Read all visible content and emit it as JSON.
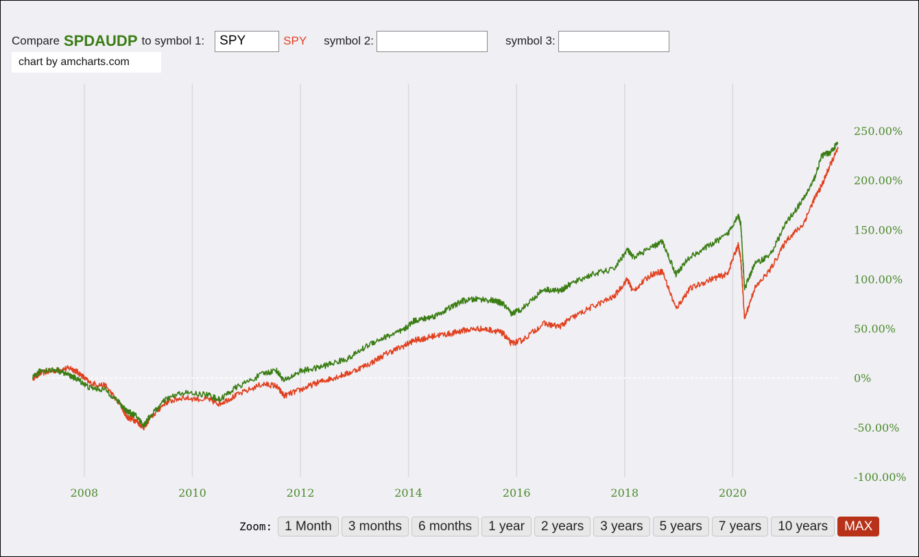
{
  "compare": {
    "prefix": "Compare",
    "symbol": "SPDAUDP",
    "middle": "to symbol 1:",
    "symbol1_value": "SPY",
    "symbol1_tag": "SPY",
    "symbol2_label": "symbol 2:",
    "symbol2_value": "",
    "symbol3_label": "symbol 3:",
    "symbol3_value": ""
  },
  "credit": "chart by amcharts.com",
  "zoom": {
    "label": "Zoom:",
    "buttons": [
      "1 Month",
      "3 months",
      "6 months",
      "1 year",
      "2 years",
      "3 years",
      "5 years",
      "7 years",
      "10 years",
      "MAX"
    ],
    "active": "MAX"
  },
  "colors": {
    "primary_series": "#3a7d14",
    "compare_series": "#e0401e",
    "axis_text": "#4a8a2a",
    "active_zoom": "#b8321a"
  },
  "chart_data": {
    "type": "line",
    "x_unit": "year",
    "xlim": [
      2007.05,
      2021.95
    ],
    "ylim": [
      -100,
      250
    ],
    "y_ticks": [
      "250.00%",
      "200.00%",
      "150.00%",
      "100.00%",
      "50.00%",
      "0%",
      "-50.00%",
      "-100.00%"
    ],
    "x_ticks": [
      "2008",
      "2010",
      "2012",
      "2014",
      "2016",
      "2018",
      "2020"
    ],
    "zero_line": true,
    "vertical_grid": true,
    "series": [
      {
        "name": "SPDAUDP",
        "x": [
          2007.05,
          2007.2,
          2007.5,
          2007.75,
          2007.9,
          2008.1,
          2008.4,
          2008.7,
          2008.8,
          2008.95,
          2009.1,
          2009.2,
          2009.5,
          2009.8,
          2010.3,
          2010.5,
          2010.8,
          2011.3,
          2011.55,
          2011.7,
          2012.0,
          2012.3,
          2012.6,
          2012.9,
          2013.3,
          2013.6,
          2013.9,
          2014.1,
          2014.3,
          2014.5,
          2014.8,
          2015.0,
          2015.3,
          2015.6,
          2015.75,
          2015.9,
          2016.1,
          2016.5,
          2016.8,
          2017.0,
          2017.4,
          2017.8,
          2018.05,
          2018.15,
          2018.5,
          2018.7,
          2018.95,
          2019.2,
          2019.6,
          2019.9,
          2020.1,
          2020.15,
          2020.22,
          2020.4,
          2020.7,
          2021.0,
          2021.3,
          2021.5,
          2021.65,
          2021.8,
          2021.95
        ],
        "y": [
          0,
          8,
          8,
          2,
          -2,
          -10,
          -12,
          -28,
          -34,
          -38,
          -48,
          -40,
          -22,
          -15,
          -17,
          -22,
          -10,
          4,
          8,
          -3,
          7,
          10,
          15,
          20,
          35,
          42,
          48,
          58,
          60,
          63,
          72,
          78,
          80,
          78,
          75,
          65,
          70,
          90,
          88,
          95,
          105,
          110,
          130,
          122,
          132,
          138,
          105,
          122,
          135,
          145,
          165,
          155,
          90,
          115,
          125,
          158,
          180,
          200,
          225,
          228,
          238
        ]
      },
      {
        "name": "SPY",
        "x": [
          2007.05,
          2007.2,
          2007.5,
          2007.75,
          2007.9,
          2008.1,
          2008.4,
          2008.7,
          2008.8,
          2008.95,
          2009.1,
          2009.2,
          2009.5,
          2009.8,
          2010.3,
          2010.5,
          2010.8,
          2011.3,
          2011.55,
          2011.7,
          2012.0,
          2012.3,
          2012.6,
          2012.9,
          2013.3,
          2013.6,
          2013.9,
          2014.1,
          2014.3,
          2014.5,
          2014.8,
          2015.0,
          2015.3,
          2015.6,
          2015.75,
          2015.9,
          2016.1,
          2016.5,
          2016.8,
          2017.0,
          2017.4,
          2017.8,
          2018.05,
          2018.15,
          2018.5,
          2018.7,
          2018.95,
          2019.2,
          2019.6,
          2019.9,
          2020.1,
          2020.15,
          2020.22,
          2020.4,
          2020.7,
          2021.0,
          2021.3,
          2021.5,
          2021.65,
          2021.8,
          2021.95
        ],
        "y": [
          0,
          5,
          8,
          10,
          5,
          -5,
          -8,
          -30,
          -40,
          -43,
          -50,
          -42,
          -25,
          -20,
          -22,
          -26,
          -18,
          -6,
          -8,
          -18,
          -12,
          -5,
          0,
          5,
          15,
          25,
          32,
          38,
          40,
          43,
          45,
          48,
          50,
          48,
          45,
          35,
          38,
          55,
          52,
          60,
          72,
          82,
          100,
          88,
          105,
          108,
          70,
          90,
          100,
          105,
          135,
          120,
          60,
          90,
          110,
          140,
          155,
          180,
          195,
          215,
          232
        ]
      }
    ]
  }
}
